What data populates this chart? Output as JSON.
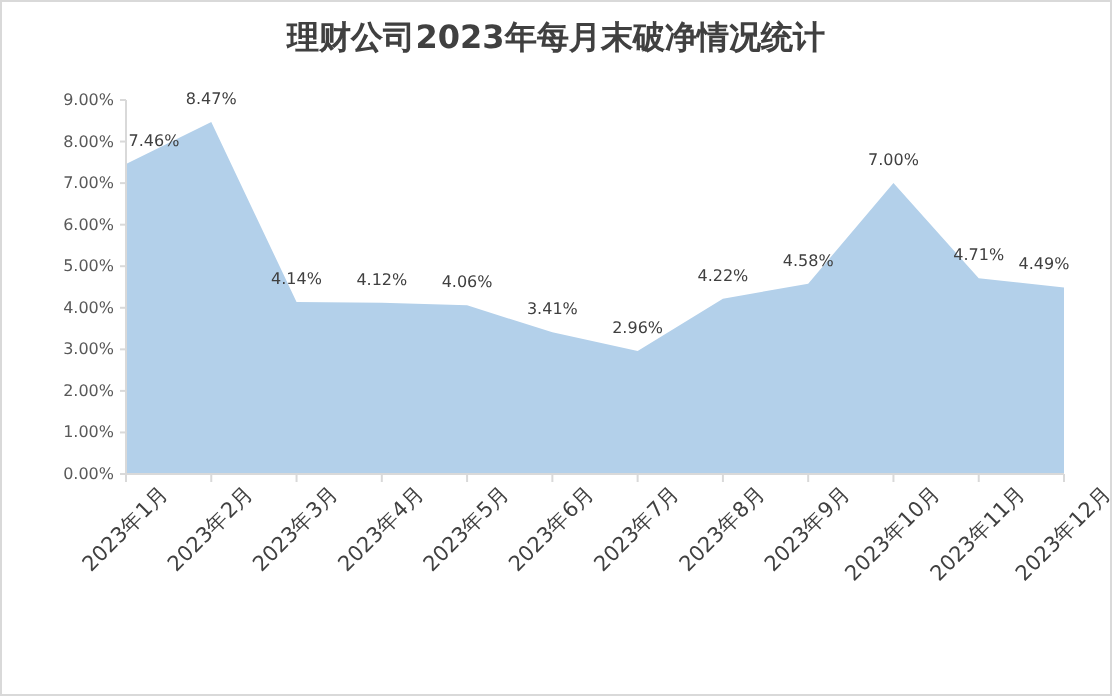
{
  "chart_data": {
    "type": "area",
    "title": "理财公司2023年每月末破净情况统计",
    "categories": [
      "2023年1月",
      "2023年2月",
      "2023年3月",
      "2023年4月",
      "2023年5月",
      "2023年6月",
      "2023年7月",
      "2023年8月",
      "2023年9月",
      "2023年10月",
      "2023年11月",
      "2023年12月"
    ],
    "values": [
      7.46,
      8.47,
      4.14,
      4.12,
      4.06,
      3.41,
      2.96,
      4.22,
      4.58,
      7.0,
      4.71,
      4.49
    ],
    "value_labels": [
      "7.46%",
      "8.47%",
      "4.14%",
      "4.12%",
      "4.06%",
      "3.41%",
      "2.96%",
      "4.22%",
      "4.58%",
      "7.00%",
      "4.71%",
      "4.49%"
    ],
    "color": "#b3d0ea",
    "ylim": [
      0,
      9
    ],
    "yticks": [
      {
        "value": 0,
        "label": "0.00%"
      },
      {
        "value": 1,
        "label": "1.00%"
      },
      {
        "value": 2,
        "label": "2.00%"
      },
      {
        "value": 3,
        "label": "3.00%"
      },
      {
        "value": 4,
        "label": "4.00%"
      },
      {
        "value": 5,
        "label": "5.00%"
      },
      {
        "value": 6,
        "label": "6.00%"
      },
      {
        "value": 7,
        "label": "7.00%"
      },
      {
        "value": 8,
        "label": "8.00%"
      },
      {
        "value": 9,
        "label": "9.00%"
      }
    ],
    "grid": false,
    "legend": false
  }
}
